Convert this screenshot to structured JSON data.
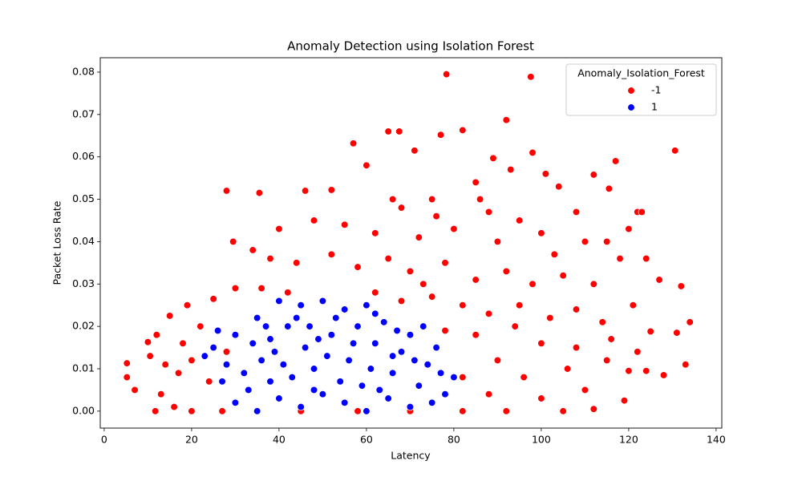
{
  "chart_data": {
    "type": "scatter",
    "title": "Anomaly Detection using Isolation Forest",
    "x_label": "Latency",
    "y_label": "Packet Loss Rate",
    "legend_title": "Anomaly_Isolation_Forest",
    "legend_position": "upper right",
    "xlim": [
      -0.9,
      141.3
    ],
    "ylim": [
      -0.004,
      0.0834
    ],
    "xticks": [
      0,
      20,
      40,
      60,
      80,
      100,
      120,
      140
    ],
    "yticks": [
      {
        "value": 0,
        "label": "0.00"
      },
      0.01,
      0.02,
      0.03,
      0.04,
      0.05,
      0.06,
      0.07,
      0.08
    ],
    "series": [
      {
        "name": "-1",
        "color": "#ff0000",
        "x": [
          78.3,
          97.6,
          92,
          130.6,
          82,
          65,
          67.5,
          57,
          77,
          89,
          71,
          98,
          117,
          28,
          35.5,
          46,
          52,
          101,
          112,
          115.5,
          60,
          85,
          93,
          104,
          75,
          68,
          88,
          95,
          108,
          122,
          123,
          120,
          40,
          48,
          55,
          62,
          72,
          80,
          90,
          100,
          110,
          115,
          29.5,
          34,
          38,
          44,
          52,
          58,
          65,
          70,
          78,
          85,
          92,
          98,
          105,
          112,
          118,
          124,
          127,
          132,
          30,
          36,
          42,
          62,
          68,
          75,
          82,
          88,
          95,
          102,
          108,
          114,
          121,
          125,
          131,
          134,
          19,
          15,
          22,
          25,
          18,
          12,
          10,
          5.2,
          5.2,
          7,
          10.5,
          14,
          17,
          20,
          24,
          28,
          13,
          16,
          11.7,
          20,
          27,
          35,
          45,
          58,
          70,
          82,
          92,
          105,
          112,
          119,
          85,
          90,
          96,
          100,
          106,
          110,
          115,
          120,
          124,
          128,
          133,
          122,
          116,
          78,
          82,
          88,
          100,
          108,
          94,
          73,
          66,
          86,
          76,
          103
        ],
        "values": [
          0.0795,
          0.0789,
          0.0687,
          0.0615,
          0.0663,
          0.066,
          0.066,
          0.0632,
          0.0652,
          0.0597,
          0.0615,
          0.061,
          0.059,
          0.052,
          0.0515,
          0.052,
          0.0522,
          0.056,
          0.0558,
          0.0525,
          0.058,
          0.054,
          0.057,
          0.053,
          0.05,
          0.048,
          0.047,
          0.045,
          0.047,
          0.047,
          0.047,
          0.043,
          0.043,
          0.045,
          0.044,
          0.042,
          0.041,
          0.043,
          0.04,
          0.042,
          0.04,
          0.04,
          0.04,
          0.038,
          0.036,
          0.035,
          0.037,
          0.034,
          0.036,
          0.033,
          0.035,
          0.031,
          0.033,
          0.03,
          0.032,
          0.03,
          0.036,
          0.036,
          0.031,
          0.0295,
          0.029,
          0.029,
          0.028,
          0.028,
          0.026,
          0.027,
          0.025,
          0.023,
          0.025,
          0.022,
          0.024,
          0.021,
          0.025,
          0.0188,
          0.0185,
          0.021,
          0.025,
          0.0225,
          0.02,
          0.0265,
          0.016,
          0.018,
          0.0163,
          0.0113,
          0.008,
          0.005,
          0.013,
          0.011,
          0.009,
          0.012,
          0.007,
          0.014,
          0.004,
          0.001,
          0,
          0,
          0,
          0,
          0,
          0,
          0,
          0,
          0,
          0,
          0.0005,
          0.0025,
          0.018,
          0.012,
          0.008,
          0.016,
          0.01,
          0.005,
          0.012,
          0.0095,
          0.0095,
          0.0085,
          0.011,
          0.014,
          0.017,
          0.019,
          0.008,
          0.004,
          0.003,
          0.015,
          0.02,
          0.03,
          0.05,
          0.05,
          0.046,
          0.037
        ]
      },
      {
        "name": "1",
        "color": "#0000ff",
        "x": [
          40,
          45,
          50,
          55,
          60,
          35,
          30,
          25,
          23,
          28,
          32,
          36,
          38,
          42,
          46,
          48,
          52,
          56,
          58,
          62,
          64,
          66,
          68,
          70,
          72,
          74,
          76,
          78,
          80,
          75,
          70,
          65,
          60,
          55,
          50,
          45,
          40,
          35,
          30,
          33,
          38,
          43,
          47,
          51,
          54,
          57,
          61,
          63,
          67,
          71,
          44,
          39,
          34,
          27,
          53,
          59,
          73,
          77,
          49,
          41,
          26,
          62,
          66,
          48,
          37
        ],
        "values": [
          0.026,
          0.025,
          0.026,
          0.024,
          0.025,
          0.022,
          0.018,
          0.015,
          0.013,
          0.011,
          0.009,
          0.012,
          0.017,
          0.02,
          0.015,
          0.01,
          0.018,
          0.012,
          0.02,
          0.016,
          0.021,
          0.009,
          0.014,
          0.018,
          0.006,
          0.011,
          0.015,
          0.004,
          0.008,
          0.002,
          0.001,
          0.003,
          0,
          0.002,
          0.004,
          0.001,
          0.003,
          0,
          0.002,
          0.005,
          0.007,
          0.008,
          0.02,
          0.013,
          0.007,
          0.016,
          0.01,
          0.005,
          0.019,
          0.012,
          0.022,
          0.014,
          0.016,
          0.007,
          0.022,
          0.006,
          0.02,
          0.009,
          0.017,
          0.011,
          0.019,
          0.023,
          0.013,
          0.005,
          0.02
        ]
      }
    ]
  }
}
